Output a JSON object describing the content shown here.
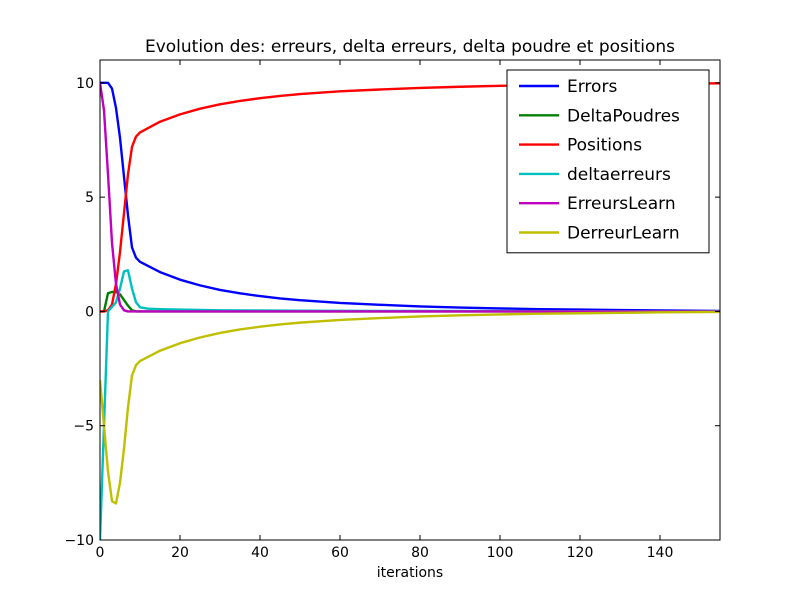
{
  "chart_data": {
    "type": "line",
    "title": "Evolution des: erreurs, delta erreurs, delta poudre et positions",
    "xlabel": "iterations",
    "ylabel": "",
    "xlim": [
      0,
      155
    ],
    "ylim": [
      -10,
      11
    ],
    "xticks": [
      0,
      20,
      40,
      60,
      80,
      100,
      120,
      140
    ],
    "yticks": [
      -10,
      -5,
      0,
      5,
      10
    ],
    "ytick_labels": [
      "−10",
      "−5",
      "0",
      "5",
      "10"
    ],
    "grid": false,
    "legend_position": "top-right",
    "series": [
      {
        "name": "Errors",
        "color": "#0000ff",
        "points": [
          [
            0,
            10
          ],
          [
            1,
            10
          ],
          [
            2,
            10
          ],
          [
            3,
            9.75
          ],
          [
            4,
            8.9
          ],
          [
            5,
            7.6
          ],
          [
            6,
            5.9
          ],
          [
            7,
            4.2
          ],
          [
            8,
            2.8
          ],
          [
            9,
            2.35
          ],
          [
            10,
            2.17
          ],
          [
            15,
            1.72
          ],
          [
            20,
            1.39
          ],
          [
            25,
            1.14
          ],
          [
            30,
            0.94
          ],
          [
            35,
            0.79
          ],
          [
            40,
            0.67
          ],
          [
            45,
            0.57
          ],
          [
            50,
            0.49
          ],
          [
            60,
            0.37
          ],
          [
            70,
            0.29
          ],
          [
            80,
            0.22
          ],
          [
            90,
            0.17
          ],
          [
            100,
            0.13
          ],
          [
            110,
            0.1
          ],
          [
            120,
            0.08
          ],
          [
            130,
            0.06
          ],
          [
            140,
            0.04
          ],
          [
            155,
            0.02
          ]
        ]
      },
      {
        "name": "DeltaPoudres",
        "color": "#008000",
        "points": [
          [
            0,
            0
          ],
          [
            1,
            0
          ],
          [
            2,
            0.8
          ],
          [
            3,
            0.85
          ],
          [
            4,
            0.85
          ],
          [
            5,
            0.75
          ],
          [
            6,
            0.5
          ],
          [
            7,
            0.25
          ],
          [
            8,
            0.05
          ],
          [
            9,
            0
          ],
          [
            155,
            0
          ]
        ]
      },
      {
        "name": "Positions",
        "color": "#ff0000",
        "points": [
          [
            0,
            0
          ],
          [
            1,
            0
          ],
          [
            2,
            0.05
          ],
          [
            3,
            0.3
          ],
          [
            4,
            1.2
          ],
          [
            5,
            2.6
          ],
          [
            6,
            4.3
          ],
          [
            7,
            6
          ],
          [
            8,
            7.2
          ],
          [
            9,
            7.65
          ],
          [
            10,
            7.83
          ],
          [
            15,
            8.3
          ],
          [
            20,
            8.62
          ],
          [
            25,
            8.87
          ],
          [
            30,
            9.06
          ],
          [
            35,
            9.21
          ],
          [
            40,
            9.33
          ],
          [
            45,
            9.43
          ],
          [
            50,
            9.51
          ],
          [
            60,
            9.63
          ],
          [
            70,
            9.71
          ],
          [
            80,
            9.78
          ],
          [
            90,
            9.83
          ],
          [
            100,
            9.87
          ],
          [
            110,
            9.9
          ],
          [
            120,
            9.92
          ],
          [
            130,
            9.94
          ],
          [
            140,
            9.96
          ],
          [
            155,
            9.98
          ]
        ]
      },
      {
        "name": "deltaerreurs",
        "color": "#00bfbf",
        "points": [
          [
            0,
            -10
          ],
          [
            1,
            -5
          ],
          [
            2,
            0
          ],
          [
            3,
            0.2
          ],
          [
            4,
            0.4
          ],
          [
            5,
            1
          ],
          [
            6,
            1.75
          ],
          [
            7,
            1.8
          ],
          [
            8,
            1
          ],
          [
            9,
            0.4
          ],
          [
            10,
            0.18
          ],
          [
            12,
            0.12
          ],
          [
            15,
            0.1
          ],
          [
            20,
            0.08
          ],
          [
            30,
            0.05
          ],
          [
            50,
            0.03
          ],
          [
            80,
            0.02
          ],
          [
            155,
            0
          ]
        ]
      },
      {
        "name": "ErreursLearn",
        "color": "#bf00bf",
        "points": [
          [
            0,
            10
          ],
          [
            1,
            8.8
          ],
          [
            2,
            6
          ],
          [
            3,
            3
          ],
          [
            4,
            1.2
          ],
          [
            5,
            0.3
          ],
          [
            6,
            0.05
          ],
          [
            7,
            0
          ],
          [
            155,
            0
          ]
        ]
      },
      {
        "name": "DerreurLearn",
        "color": "#bfbf00",
        "points": [
          [
            0,
            -3
          ],
          [
            1,
            -5
          ],
          [
            2,
            -7
          ],
          [
            3,
            -8.3
          ],
          [
            4,
            -8.4
          ],
          [
            5,
            -7.5
          ],
          [
            6,
            -6
          ],
          [
            7,
            -4.2
          ],
          [
            8,
            -2.8
          ],
          [
            9,
            -2.35
          ],
          [
            10,
            -2.17
          ],
          [
            15,
            -1.72
          ],
          [
            20,
            -1.39
          ],
          [
            25,
            -1.14
          ],
          [
            30,
            -0.94
          ],
          [
            35,
            -0.79
          ],
          [
            40,
            -0.67
          ],
          [
            45,
            -0.57
          ],
          [
            50,
            -0.49
          ],
          [
            60,
            -0.37
          ],
          [
            70,
            -0.29
          ],
          [
            80,
            -0.22
          ],
          [
            90,
            -0.17
          ],
          [
            100,
            -0.13
          ],
          [
            110,
            -0.1
          ],
          [
            120,
            -0.08
          ],
          [
            130,
            -0.06
          ],
          [
            140,
            -0.04
          ],
          [
            155,
            -0.02
          ]
        ]
      }
    ]
  }
}
